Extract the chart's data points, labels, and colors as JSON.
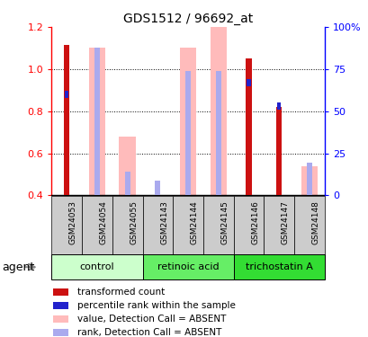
{
  "title": "GDS1512 / 96692_at",
  "samples": [
    "GSM24053",
    "GSM24054",
    "GSM24055",
    "GSM24143",
    "GSM24144",
    "GSM24145",
    "GSM24146",
    "GSM24147",
    "GSM24148"
  ],
  "groups": [
    {
      "name": "control",
      "color": "#ccffcc",
      "span": [
        0,
        3
      ]
    },
    {
      "name": "retinoic acid",
      "color": "#66ee66",
      "span": [
        3,
        6
      ]
    },
    {
      "name": "trichostatin A",
      "color": "#33dd33",
      "span": [
        6,
        9
      ]
    }
  ],
  "ylim": [
    0.4,
    1.2
  ],
  "yticks": [
    0.4,
    0.6,
    0.8,
    1.0,
    1.2
  ],
  "y2ticks": [
    0,
    25,
    50,
    75,
    100
  ],
  "y2labels": [
    "0",
    "25",
    "50",
    "75",
    "100%"
  ],
  "transformed_count": [
    1.115,
    null,
    null,
    null,
    null,
    null,
    1.05,
    0.82,
    null
  ],
  "percentile_rank": [
    0.88,
    null,
    null,
    null,
    null,
    null,
    0.935,
    0.825,
    null
  ],
  "absent_value": [
    null,
    1.1,
    0.68,
    null,
    1.1,
    1.2,
    null,
    null,
    0.54
  ],
  "absent_rank": [
    null,
    1.1,
    0.515,
    0.47,
    0.99,
    0.99,
    null,
    null,
    0.555
  ],
  "color_red": "#cc1111",
  "color_blue": "#2222cc",
  "color_pink": "#ffbbbb",
  "color_lightblue": "#aaaaee",
  "sample_bg": "#cccccc",
  "legend_items": [
    {
      "color": "#cc1111",
      "label": "transformed count"
    },
    {
      "color": "#2222cc",
      "label": "percentile rank within the sample"
    },
    {
      "color": "#ffbbbb",
      "label": "value, Detection Call = ABSENT"
    },
    {
      "color": "#aaaaee",
      "label": "rank, Detection Call = ABSENT"
    }
  ]
}
